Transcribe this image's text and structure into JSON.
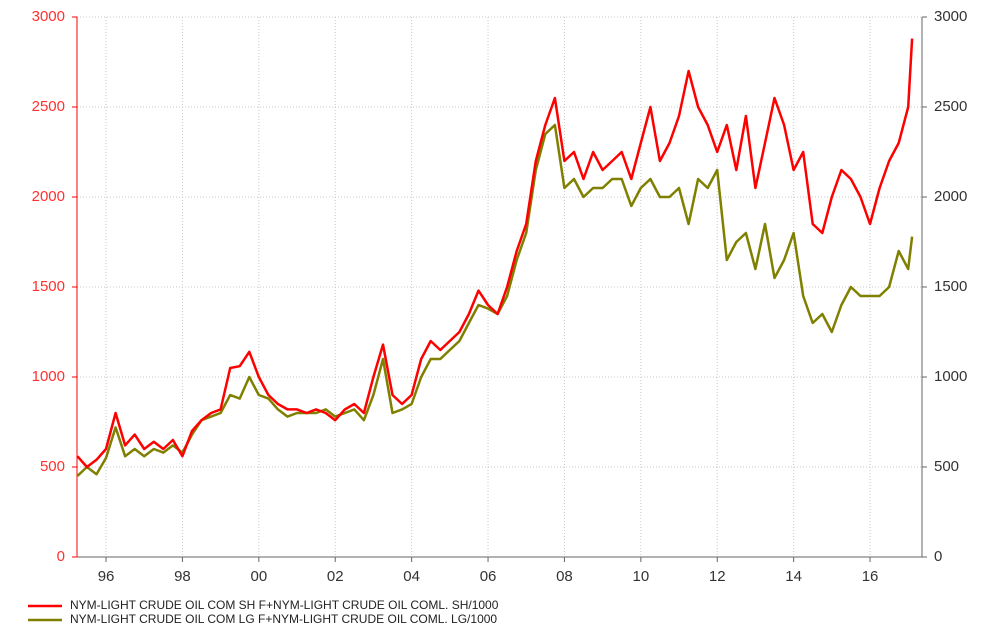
{
  "chart_data": {
    "type": "line",
    "x": [
      1995.25,
      1995.5,
      1995.75,
      1996,
      1996.25,
      1996.5,
      1996.75,
      1997,
      1997.25,
      1997.5,
      1997.75,
      1998,
      1998.25,
      1998.5,
      1998.75,
      1999,
      1999.25,
      1999.5,
      1999.75,
      2000,
      2000.25,
      2000.5,
      2000.75,
      2001,
      2001.25,
      2001.5,
      2001.75,
      2002,
      2002.25,
      2002.5,
      2002.75,
      2003,
      2003.25,
      2003.5,
      2003.75,
      2004,
      2004.25,
      2004.5,
      2004.75,
      2005,
      2005.25,
      2005.5,
      2005.75,
      2006,
      2006.25,
      2006.5,
      2006.75,
      2007,
      2007.25,
      2007.5,
      2007.75,
      2008,
      2008.25,
      2008.5,
      2008.75,
      2009,
      2009.25,
      2009.5,
      2009.75,
      2010,
      2010.25,
      2010.5,
      2010.75,
      2011,
      2011.25,
      2011.5,
      2011.75,
      2012,
      2012.25,
      2012.5,
      2012.75,
      2013,
      2013.25,
      2013.5,
      2013.75,
      2014,
      2014.25,
      2014.5,
      2014.75,
      2015,
      2015.25,
      2015.5,
      2015.75,
      2016,
      2016.25,
      2016.5,
      2016.75,
      2017,
      2017.1
    ],
    "series": [
      {
        "name": "NYM-LIGHT CRUDE OIL COM SH F+NYM-LIGHT CRUDE OIL COML. SH/1000",
        "color": "#ff0000",
        "values": [
          560,
          500,
          540,
          600,
          800,
          620,
          680,
          600,
          640,
          600,
          650,
          560,
          700,
          760,
          800,
          820,
          1050,
          1060,
          1140,
          1000,
          900,
          850,
          820,
          820,
          800,
          820,
          800,
          760,
          820,
          850,
          800,
          1000,
          1180,
          900,
          850,
          900,
          1100,
          1200,
          1150,
          1200,
          1250,
          1350,
          1480,
          1400,
          1350,
          1500,
          1700,
          1850,
          2200,
          2400,
          2550,
          2200,
          2250,
          2100,
          2250,
          2150,
          2200,
          2250,
          2100,
          2300,
          2500,
          2200,
          2300,
          2450,
          2700,
          2500,
          2400,
          2250,
          2400,
          2150,
          2450,
          2050,
          2300,
          2550,
          2400,
          2150,
          2250,
          1850,
          1800,
          2000,
          2150,
          2100,
          2000,
          1850,
          2050,
          2200,
          2300,
          2500,
          2880
        ]
      },
      {
        "name": "NYM-LIGHT CRUDE OIL COM LG F+NYM-LIGHT CRUDE OIL COML. LG/1000",
        "color": "#808000",
        "axis": "y2",
        "values": [
          450,
          500,
          460,
          550,
          720,
          560,
          600,
          560,
          600,
          580,
          620,
          580,
          680,
          760,
          780,
          800,
          900,
          880,
          1000,
          900,
          880,
          820,
          780,
          800,
          800,
          800,
          820,
          780,
          800,
          820,
          760,
          900,
          1100,
          800,
          820,
          850,
          1000,
          1100,
          1100,
          1150,
          1200,
          1300,
          1400,
          1380,
          1350,
          1450,
          1650,
          1800,
          2150,
          2350,
          2400,
          2050,
          2100,
          2000,
          2050,
          2050,
          2100,
          2100,
          1950,
          2050,
          2100,
          2000,
          2000,
          2050,
          1850,
          2100,
          2050,
          2150,
          1650,
          1750,
          1800,
          1600,
          1850,
          1550,
          1650,
          1800,
          1450,
          1300,
          1350,
          1250,
          1400,
          1500,
          1450,
          1450,
          1450,
          1500,
          1700,
          1600,
          1780
        ]
      }
    ],
    "xlim": [
      1995.24,
      2017.36
    ],
    "xticks": [
      {
        "value": 1996,
        "label": "96"
      },
      {
        "value": 1998,
        "label": "98"
      },
      {
        "value": 2000,
        "label": "00"
      },
      {
        "value": 2002,
        "label": "02"
      },
      {
        "value": 2004,
        "label": "04"
      },
      {
        "value": 2006,
        "label": "06"
      },
      {
        "value": 2008,
        "label": "08"
      },
      {
        "value": 2010,
        "label": "10"
      },
      {
        "value": 2012,
        "label": "12"
      },
      {
        "value": 2014,
        "label": "14"
      },
      {
        "value": 2016,
        "label": "16"
      }
    ],
    "ylim": [
      0,
      3000
    ],
    "yticks": [
      0,
      500,
      1000,
      1500,
      2000,
      2500,
      3000
    ],
    "y2lim": [
      0,
      3000
    ],
    "y2ticks": [
      0,
      500,
      1000,
      1500,
      2000,
      2500,
      3000
    ],
    "grid": true,
    "legend": "bottom-left"
  }
}
